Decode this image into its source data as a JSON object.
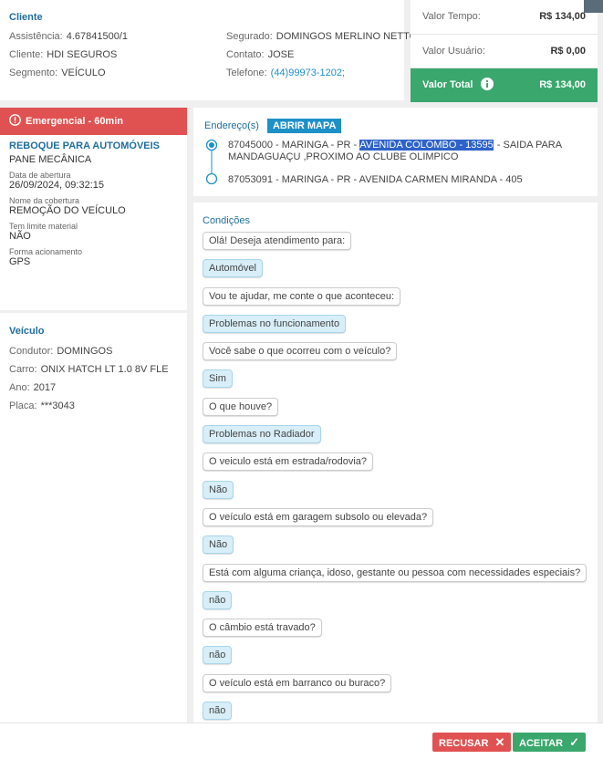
{
  "cliente": {
    "title": "Cliente",
    "left": [
      {
        "label": "Assistência:",
        "value": "4.67841500/1"
      },
      {
        "label": "Cliente:",
        "value": "HDI SEGUROS"
      },
      {
        "label": "Segmento:",
        "value": "VEÍCULO"
      }
    ],
    "right": [
      {
        "label": "Segurado:",
        "value": "DOMINGOS MERLINO NETTO"
      },
      {
        "label": "Contato:",
        "value": "JOSE"
      },
      {
        "label": "Telefone:",
        "value": "(44)99973-1202;"
      }
    ]
  },
  "valores": {
    "items": [
      {
        "label": "Valor Tempo:",
        "value": "R$ 134,00"
      },
      {
        "label": "Valor Usuário:",
        "value": "R$ 0,00"
      }
    ],
    "total": {
      "label": "Valor Total",
      "value": "R$ 134,00"
    }
  },
  "servico": {
    "badge": "Emergencial - 60min",
    "title": "REBOQUE PARA AUTOMÓVEIS",
    "subtitle": "PANE MECÂNICA",
    "fields": [
      {
        "label": "Data de abertura",
        "value": "26/09/2024, 09:32:15"
      },
      {
        "label": "Nome da cobertura",
        "value": "REMOÇÃO DO VEÍCULO"
      },
      {
        "label": "Tem limite material",
        "value": "NÃO"
      },
      {
        "label": "Forma acionamento",
        "value": "GPS"
      }
    ]
  },
  "veiculo": {
    "title": "Veículo",
    "fields": [
      {
        "label": "Condutor:",
        "value": "DOMINGOS"
      },
      {
        "label": "Carro:",
        "value": "ONIX HATCH LT 1.0 8V FLE"
      },
      {
        "label": "Ano:",
        "value": "2017"
      },
      {
        "label": "Placa:",
        "value": "***3043"
      }
    ]
  },
  "endereco": {
    "title": "Endereço(s)",
    "button": "ABRIR MAPA",
    "origin": {
      "prefix": "87045000 - MARINGA - PR -",
      "highlight": "AVENIDA COLOMBO - 13595",
      "suffix": "- SAIDA PARA MANDAGUAÇU ,PROXIMO AO CLUBE OLIMPICO"
    },
    "destination": "87053091 - MARINGA - PR - AVENIDA CARMEN MIRANDA - 405"
  },
  "condicoes": {
    "title": "Condições",
    "pairs": [
      {
        "question": "Olá! Deseja atendimento para:",
        "answer": "Automóvel"
      },
      {
        "question": "Vou te ajudar, me conte o que aconteceu:",
        "answer": "Problemas no funcionamento"
      },
      {
        "question": "Você sabe o que ocorreu com o veículo?",
        "answer": "Sim"
      },
      {
        "question": "O que houve?",
        "answer": "Problemas no Radiador"
      },
      {
        "question": "O veiculo está em estrada/rodovia?",
        "answer": "Não"
      },
      {
        "question": "O veículo está em garagem subsolo ou elevada?",
        "answer": "Não"
      },
      {
        "question": "Está com alguma criança, idoso, gestante ou pessoa com necessidades especiais?",
        "answer": "não"
      },
      {
        "question": "O câmbio está travado?",
        "answer": "não"
      },
      {
        "question": "O veículo está em barranco ou buraco?",
        "answer": "não"
      }
    ]
  },
  "actions": {
    "reject": "RECUSAR",
    "accept": "ACEITAR"
  }
}
